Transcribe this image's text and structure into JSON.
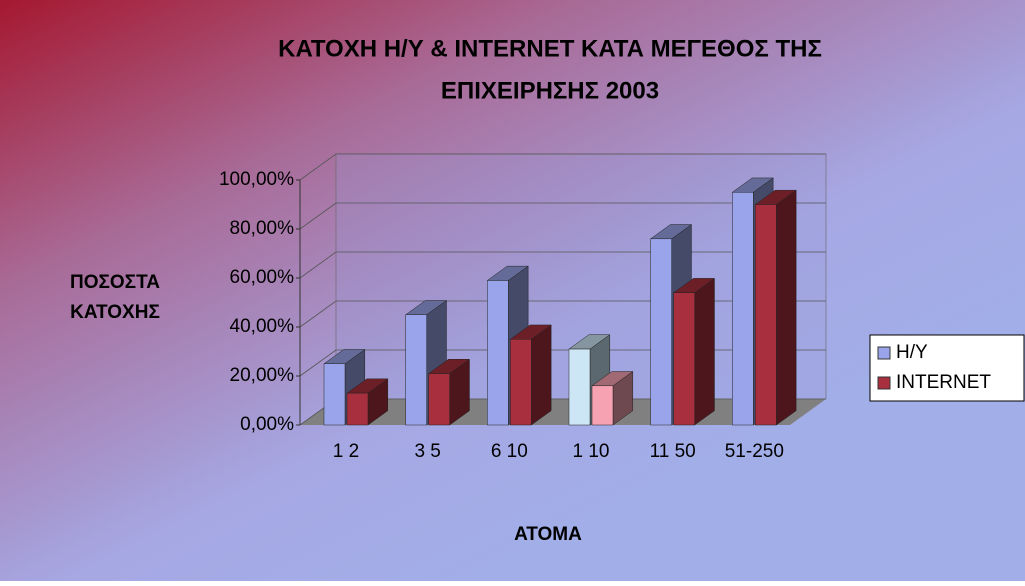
{
  "chart_data": {
    "type": "bar3d",
    "title": [
      "ΚΑΤΟΧΗ Η/Υ & INTERNET ΚΑΤΑ ΜΕΓΕΘΟΣ ΤΗΣ",
      "ΕΠΙΧΕΙΡΗΣΗΣ 2003"
    ],
    "y_label": [
      "ΠΟΣΟΣΤΑ",
      "ΚΑΤΟΧΗΣ"
    ],
    "x_label": "ΑΤΟΜΑ",
    "categories": [
      "1 2",
      "3 5",
      "6 10",
      "1 10",
      "11 50",
      "51-250"
    ],
    "series": [
      {
        "name": "H/Y",
        "color": "#9aa4ea",
        "colors": [
          "#9aa4ea",
          "#9aa4ea",
          "#9aa4ea",
          "#cce6f6",
          "#9aa4ea",
          "#9aa4ea"
        ],
        "values": [
          25,
          45,
          59,
          31,
          76,
          95
        ]
      },
      {
        "name": "INTERNET",
        "color": "#a8303e",
        "colors": [
          "#a8303e",
          "#a8303e",
          "#a8303e",
          "#f6a2b2",
          "#a8303e",
          "#a8303e"
        ],
        "values": [
          13,
          21,
          35,
          16,
          54,
          90
        ]
      }
    ],
    "ylim": [
      0,
      100
    ],
    "yticks": [
      {
        "value": 0,
        "label": "0,00%"
      },
      {
        "value": 20,
        "label": "20,00%"
      },
      {
        "value": 40,
        "label": "40,00%"
      },
      {
        "value": 60,
        "label": "60,00%"
      },
      {
        "value": 80,
        "label": "80,00%"
      },
      {
        "value": 100,
        "label": "100,00%"
      }
    ],
    "grid": true,
    "legend": "right"
  }
}
